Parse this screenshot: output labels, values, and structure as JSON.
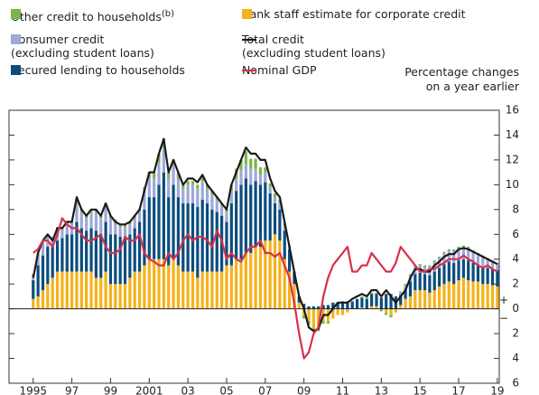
{
  "chart_data": {
    "type": "bar-line",
    "axis_note": "Percentage changes\non a year earlier",
    "sign_labels": [
      "+",
      "−"
    ],
    "x": [
      1995,
      1995.25,
      1995.5,
      1995.75,
      1996,
      1996.25,
      1996.5,
      1996.75,
      1997,
      1997.25,
      1997.5,
      1997.75,
      1998,
      1998.25,
      1998.5,
      1998.75,
      1999,
      1999.25,
      1999.5,
      1999.75,
      2000,
      2000.25,
      2000.5,
      2000.75,
      2001,
      2001.25,
      2001.5,
      2001.75,
      2002,
      2002.25,
      2002.5,
      2002.75,
      2003,
      2003.25,
      2003.5,
      2003.75,
      2004,
      2004.25,
      2004.5,
      2004.75,
      2005,
      2005.25,
      2005.5,
      2005.75,
      2006,
      2006.25,
      2006.5,
      2006.75,
      2007,
      2007.25,
      2007.5,
      2007.75,
      2008,
      2008.25,
      2008.5,
      2008.75,
      2009,
      2009.25,
      2009.5,
      2009.75,
      2010,
      2010.25,
      2010.5,
      2010.75,
      2011,
      2011.25,
      2011.5,
      2011.75,
      2012,
      2012.25,
      2012.5,
      2012.75,
      2013,
      2013.25,
      2013.5,
      2013.75,
      2014,
      2014.25,
      2014.5,
      2014.75,
      2015,
      2015.25,
      2015.5,
      2015.75,
      2016,
      2016.25,
      2016.5,
      2016.75,
      2017,
      2017.25,
      2017.5,
      2017.75,
      2018,
      2018.25,
      2018.5,
      2018.75,
      2019
    ],
    "series": [
      {
        "name": "Bank staff estimate for corporate credit",
        "kind": "bar",
        "color": "#f5b21c",
        "values": [
          0.8,
          1,
          1.5,
          2,
          2.5,
          3,
          3,
          3,
          3,
          3,
          3,
          3,
          3,
          2.5,
          2.5,
          3,
          2,
          2,
          2,
          2,
          2.5,
          3,
          3,
          3.5,
          4,
          4,
          4,
          4,
          3.5,
          4,
          3.5,
          3,
          3,
          3,
          2.5,
          3,
          3,
          3,
          3,
          3,
          3.5,
          3.5,
          4,
          4,
          4.5,
          4.5,
          5,
          5,
          5.5,
          5.5,
          6,
          5.5,
          4,
          3,
          2,
          0.5,
          -0.5,
          -1,
          -1.5,
          -1.5,
          -1,
          -1,
          -0.8,
          -0.5,
          -0.5,
          -0.3,
          0,
          0,
          0.1,
          0,
          0.2,
          0.2,
          0,
          -0.3,
          -0.5,
          -0.3,
          0.3,
          0.8,
          1,
          1.5,
          1.5,
          1.5,
          1.3,
          1.5,
          1.8,
          2,
          2.2,
          2,
          2.3,
          2.5,
          2.3,
          2.2,
          2.2,
          2,
          2,
          1.9,
          1.8
        ]
      },
      {
        "name": "Secured lending to households",
        "kind": "bar",
        "color": "#0b4d7e",
        "values": [
          1.5,
          2.5,
          2.8,
          3,
          2.5,
          2.5,
          2.7,
          3,
          3,
          4,
          3.5,
          3.3,
          3.5,
          3.8,
          3.5,
          4,
          4,
          4,
          3.8,
          3.8,
          3.5,
          3.5,
          4,
          4.5,
          5,
          5,
          6,
          7,
          5.5,
          6,
          5.5,
          5.5,
          5.5,
          5.5,
          5.7,
          5.8,
          5.5,
          5,
          4.8,
          4.5,
          3.5,
          5,
          5.5,
          6,
          6,
          5.5,
          5.3,
          5,
          4.7,
          3.8,
          2.5,
          2.5,
          2.3,
          1.8,
          1,
          0.5,
          0.4,
          0.2,
          0.2,
          0.2,
          0.3,
          0.3,
          0.5,
          0.5,
          0.6,
          0.6,
          0.6,
          0.8,
          0.8,
          0.8,
          1,
          1,
          0.9,
          1.2,
          1.2,
          1,
          0.8,
          0.8,
          1.2,
          1.3,
          1.4,
          1.3,
          1.4,
          1.5,
          1.5,
          1.6,
          1.6,
          1.7,
          1.6,
          1.5,
          1.6,
          1.5,
          1.4,
          1.4,
          1.3,
          1.3,
          1.3
        ]
      },
      {
        "name": "Consumer credit\n(excluding student loans)",
        "kind": "bar",
        "color": "#9fa8d8",
        "values": [
          0.3,
          0.8,
          1,
          0.8,
          0.6,
          0.9,
          0.7,
          0.9,
          0.9,
          1.5,
          1.3,
          1,
          1.3,
          1.5,
          1.3,
          1.3,
          1.3,
          1,
          0.8,
          0.8,
          0.8,
          0.8,
          0.8,
          1.5,
          1.5,
          1.5,
          1.8,
          2,
          1.5,
          1.5,
          1.5,
          1.2,
          1.5,
          1.5,
          1.5,
          1.5,
          1.2,
          1.2,
          1,
          0.8,
          0.8,
          1,
          1,
          1.2,
          1.2,
          1.3,
          1,
          0.8,
          0.8,
          0.5,
          0.5,
          0.5,
          0.4,
          0.2,
          0,
          0,
          0,
          0,
          0,
          0,
          0,
          0,
          0,
          0,
          0,
          0,
          0,
          0,
          0,
          0,
          0,
          0,
          0,
          0,
          0,
          0,
          0.2,
          0.3,
          0.5,
          0.6,
          0.6,
          0.6,
          0.7,
          0.8,
          0.8,
          0.9,
          0.9,
          1,
          1,
          1,
          1,
          0.9,
          0.8,
          0.8,
          0.7,
          0.6,
          0.5
        ]
      },
      {
        "name": "Other credit to households",
        "note": "(b)",
        "kind": "bar",
        "color": "#7ab648",
        "values": [
          0.2,
          0.2,
          0.2,
          0.2,
          0.2,
          0.2,
          0.2,
          0.2,
          0.2,
          0.2,
          0.2,
          0.2,
          0.2,
          0.2,
          0.2,
          0.2,
          0.2,
          0.2,
          0.2,
          0.2,
          0.2,
          0.2,
          0.2,
          0.3,
          0.5,
          0.5,
          0.7,
          0.7,
          0.5,
          0.5,
          0.5,
          0.3,
          0.3,
          0.3,
          0.3,
          0.3,
          0.3,
          0.3,
          0.2,
          0.2,
          0.2,
          0.5,
          0.8,
          0.8,
          1,
          0.8,
          0.8,
          0.6,
          0.4,
          0.3,
          0.3,
          0.3,
          0.2,
          0.1,
          0,
          0,
          -0.3,
          -0.3,
          -0.3,
          -0.3,
          -0.2,
          -0.2,
          0,
          0,
          0,
          0,
          0,
          0,
          0.1,
          0.1,
          0.1,
          0.1,
          -0.2,
          -0.2,
          -0.2,
          0,
          0.1,
          0.1,
          0.1,
          0.1,
          0.1,
          0.1,
          0.1,
          0.1,
          0.1,
          0.1,
          0.1,
          0.1,
          0.1,
          0.1,
          0.1,
          0.1,
          0.1,
          0.1,
          0.1,
          0.1,
          0.1
        ]
      },
      {
        "name": "Total credit\n(excluding student loans)",
        "kind": "line",
        "color": "#1a1a1a",
        "values": [
          2.5,
          4.5,
          5.5,
          6,
          5.5,
          6.5,
          6.5,
          7,
          7,
          9,
          8,
          7.5,
          8,
          8,
          7.5,
          8.5,
          7.5,
          7,
          6.8,
          6.8,
          7,
          7.5,
          8,
          9.5,
          11,
          11,
          12.5,
          13.7,
          11,
          12,
          11,
          10,
          10.5,
          10.5,
          10.2,
          10.8,
          10,
          9.5,
          9,
          8.5,
          8,
          10,
          11,
          12,
          13,
          12.5,
          12.5,
          12,
          12,
          10.5,
          9.5,
          9,
          7,
          5,
          3,
          1,
          0,
          -1.5,
          -1.8,
          -1.6,
          -0.5,
          -0.5,
          0,
          0.5,
          0.5,
          0.5,
          0.8,
          1,
          1.2,
          1,
          1.5,
          1.5,
          1,
          1.5,
          1,
          0.5,
          1,
          1.5,
          2.5,
          3.2,
          3.2,
          3,
          3,
          3.5,
          3.8,
          4.2,
          4.4,
          4.4,
          4.8,
          4.9,
          4.8,
          4.6,
          4.4,
          4.2,
          4,
          3.8,
          3.6
        ]
      },
      {
        "name": "Nominal GDP",
        "kind": "line",
        "color": "#d9304a",
        "values": [
          4.5,
          4.8,
          5.5,
          5.5,
          5,
          6,
          7.3,
          6.8,
          6.5,
          6.5,
          6,
          5.5,
          5.5,
          5.7,
          6,
          5,
          4.5,
          4.5,
          4.8,
          5.8,
          5.5,
          5.5,
          6,
          4.5,
          4,
          3.8,
          3.5,
          3.5,
          4.5,
          4,
          4.5,
          5.5,
          6,
          5.5,
          5.8,
          5.8,
          5.5,
          5,
          6.3,
          5.5,
          4,
          4.5,
          4,
          3.8,
          4.5,
          5,
          5,
          5.5,
          4.5,
          4.5,
          4.2,
          4.5,
          3.5,
          2.5,
          0.5,
          -2,
          -4,
          -3.5,
          -2,
          -1.5,
          1,
          2.5,
          3.5,
          4,
          4.5,
          5,
          3,
          3,
          3.5,
          3.5,
          4.5,
          4,
          3.5,
          3,
          3,
          3.7,
          5,
          4.5,
          4,
          3.5,
          3,
          3,
          3.2,
          3.2,
          3.5,
          3.7,
          4,
          4,
          4,
          4.3,
          4,
          3.8,
          3.5,
          3.3,
          3.5,
          3.2,
          3
        ]
      }
    ],
    "xlim": [
      1993.75,
      2019.1
    ],
    "xticks": [
      {
        "value": 1995,
        "label": "1995"
      },
      {
        "value": 1997,
        "label": "97"
      },
      {
        "value": 1999,
        "label": "99"
      },
      {
        "value": 2001,
        "label": "2001"
      },
      {
        "value": 2003,
        "label": "03"
      },
      {
        "value": 2005,
        "label": "05"
      },
      {
        "value": 2007,
        "label": "07"
      },
      {
        "value": 2009,
        "label": "09"
      },
      {
        "value": 2011,
        "label": "11"
      },
      {
        "value": 2013,
        "label": "13"
      },
      {
        "value": 2015,
        "label": "15"
      },
      {
        "value": 2017,
        "label": "17"
      },
      {
        "value": 2019,
        "label": "19"
      }
    ],
    "ylim": [
      -6,
      16
    ],
    "yticks": [
      {
        "value": -6,
        "label": "6"
      },
      {
        "value": -4,
        "label": "4"
      },
      {
        "value": -2,
        "label": "2"
      },
      0,
      2,
      4,
      6,
      8,
      10,
      12,
      14,
      16
    ]
  }
}
